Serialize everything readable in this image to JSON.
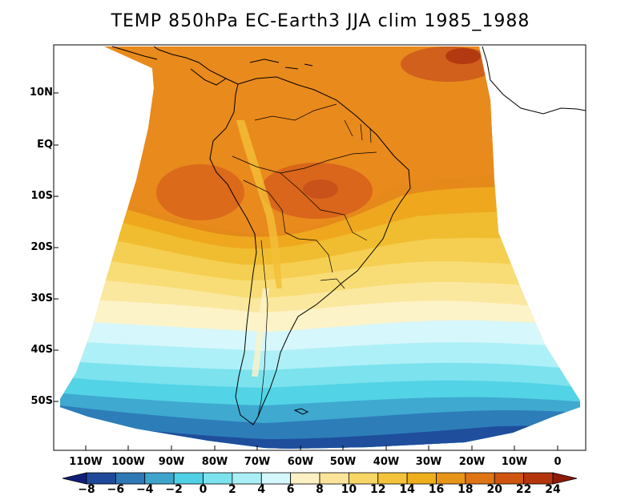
{
  "title": "TEMP 850hPa EC-Earth3 JJA clim 1985_1988",
  "map": {
    "variable": "TEMP",
    "level": "850hPa",
    "model": "EC-Earth3",
    "season": "JJA",
    "period": "1985_1988",
    "lat_labels": [
      "10N",
      "EQ",
      "10S",
      "20S",
      "30S",
      "40S",
      "50S"
    ],
    "lon_labels": [
      "110W",
      "100W",
      "90W",
      "80W",
      "70W",
      "60W",
      "50W",
      "40W",
      "30W",
      "20W",
      "10W",
      "0"
    ]
  },
  "colorbar": {
    "labels": [
      "-8",
      "-6",
      "-4",
      "-2",
      "0",
      "2",
      "4",
      "6",
      "8",
      "10",
      "12",
      "14",
      "16",
      "18",
      "20",
      "22",
      "24"
    ],
    "colors": [
      "#101e7a",
      "#1f4a9a",
      "#2e78b6",
      "#3fa4cc",
      "#4fd0e4",
      "#7ce2ee",
      "#aaeff6",
      "#d4f8fc",
      "#fdf0c4",
      "#fbe49a",
      "#f8d666",
      "#f4c33a",
      "#efae1c",
      "#e89418",
      "#df7414",
      "#cf5410",
      "#b4350c",
      "#8e1a07"
    ]
  }
}
